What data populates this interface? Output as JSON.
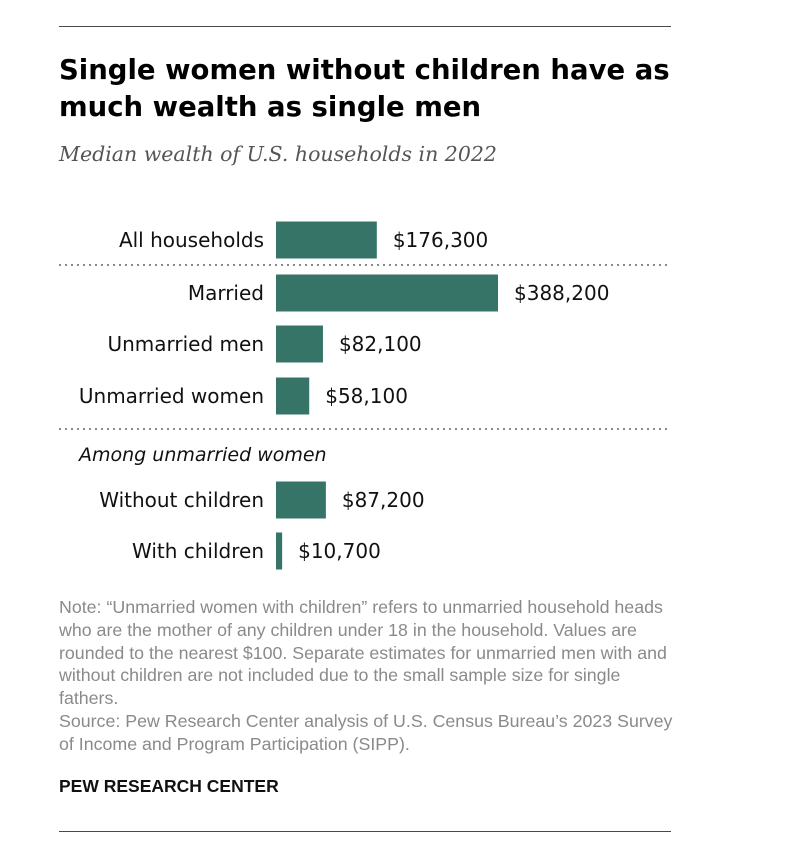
{
  "title": "Single women without children have as much wealth as single men",
  "subtitle": "Median wealth of U.S. households in 2022",
  "chart_data": {
    "type": "bar",
    "orientation": "horizontal",
    "title": "Single women without children have as much wealth as single men",
    "subtitle": "Median wealth of U.S. households in 2022",
    "bar_color": "#357467",
    "grid": false,
    "categories": [
      "All households",
      "Married",
      "Unmarried men",
      "Unmarried women",
      "Without children",
      "With children"
    ],
    "values": [
      176300,
      388200,
      82100,
      58100,
      87200,
      10700
    ],
    "value_labels": [
      "$176,300",
      "$388,200",
      "$82,100",
      "$58,100",
      "$87,200",
      "$10,700"
    ],
    "group_heading": "Among unmarried women",
    "xlim": [
      0,
      388200
    ]
  },
  "note": {
    "text": "Note: “Unmarried women with children” refers to unmarried household heads who are the mother of any children under 18 in the household. Values are rounded to the nearest $100. Separate estimates for unmarried men with and without children are not included due to the small sample size for single fathers.",
    "source": "Source: Pew Research Center analysis of U.S. Census Bureau’s 2023 Survey of Income and Program Participation (SIPP)."
  },
  "brand": "PEW RESEARCH CENTER"
}
